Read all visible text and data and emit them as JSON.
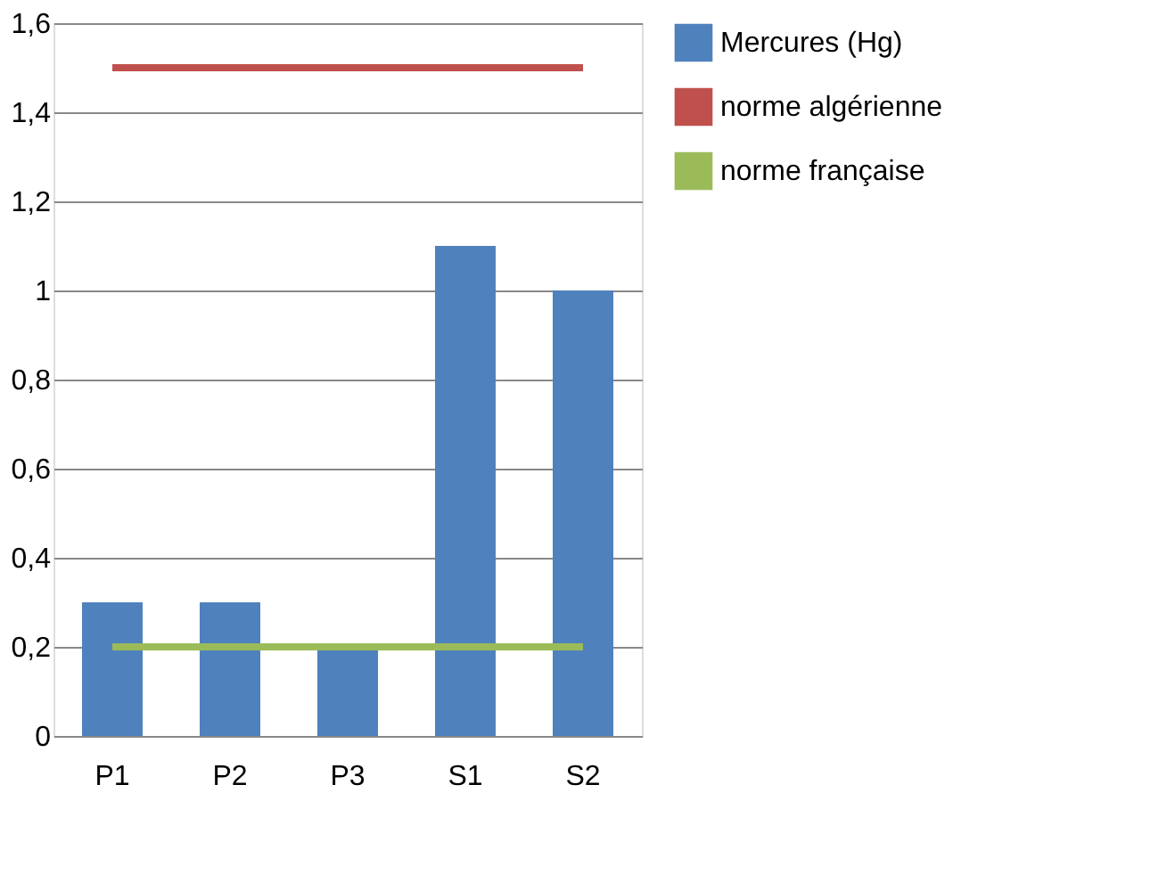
{
  "chart_data": {
    "type": "bar",
    "categories": [
      "P1",
      "P2",
      "P3",
      "S1",
      "S2"
    ],
    "series": [
      {
        "name": "Mercures (Hg)",
        "color": "#4f81bd",
        "values": [
          0.3,
          0.3,
          0.2,
          1.1,
          1.0
        ]
      },
      {
        "name": "norme algérienne",
        "color": "#c0504d",
        "type": "line",
        "values": [
          1.5,
          1.5,
          1.5,
          1.5,
          1.5
        ]
      },
      {
        "name": "norme française",
        "color": "#9bbb59",
        "type": "line",
        "values": [
          0.2,
          0.2,
          0.2,
          0.2,
          0.2
        ]
      }
    ],
    "ylim": [
      0,
      1.6
    ],
    "yticks": [
      0,
      {
        "value": 0.2,
        "label": "0,2"
      },
      {
        "value": 0.4,
        "label": "0,4"
      },
      {
        "value": 0.6,
        "label": "0,6"
      },
      {
        "value": 0.8,
        "label": "0,8"
      },
      1,
      {
        "value": 1.2,
        "label": "1,2"
      },
      {
        "value": 1.4,
        "label": "1,4"
      },
      {
        "value": 1.6,
        "label": "1,6"
      }
    ],
    "grid": "y",
    "legend": "right"
  }
}
